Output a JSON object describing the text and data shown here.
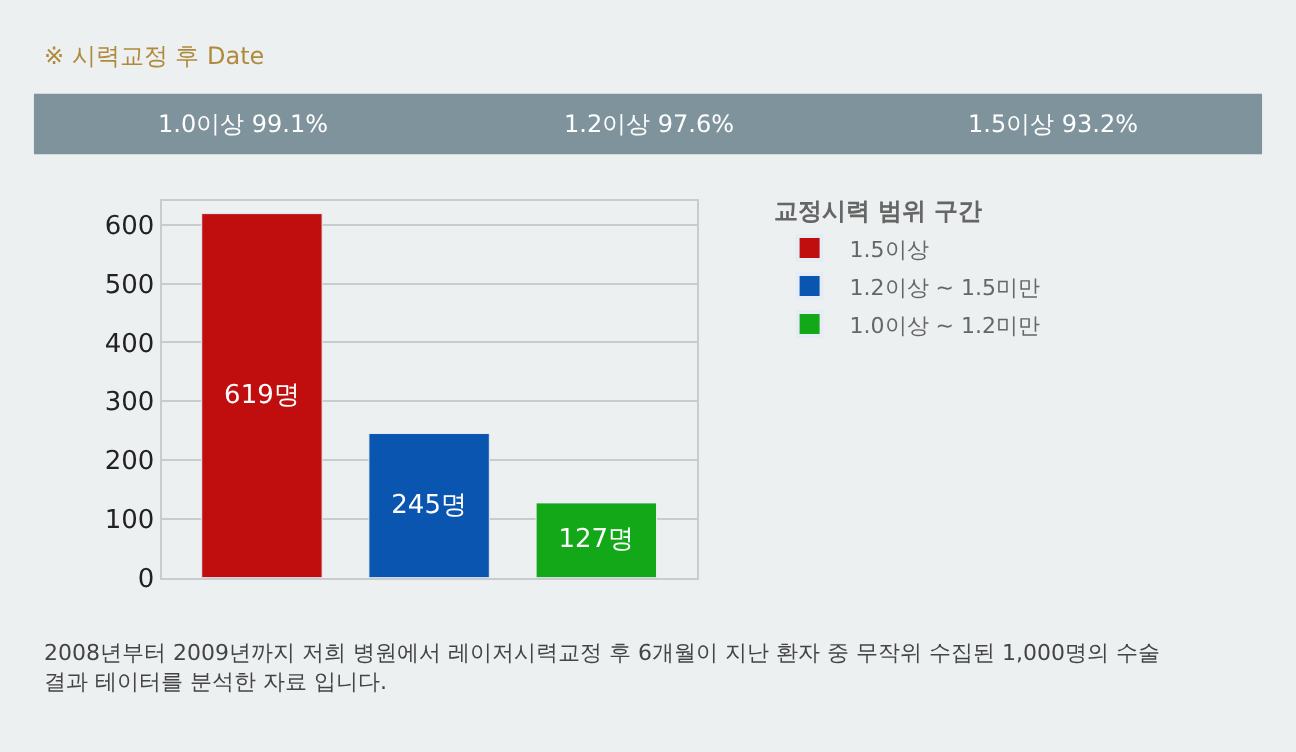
{
  "chart_data": {
    "type": "bar",
    "title": "※ 시력교정 후 Date",
    "legend_title": "교정시력 범위 구간",
    "categories": [
      null,
      null,
      null
    ],
    "series": [
      {
        "name": "1.5이상",
        "color": "#c00d0d",
        "values": [
          619,
          null,
          null
        ],
        "value_labels": [
          "619명",
          null,
          null
        ]
      },
      {
        "name": "1.2이상 ~ 1.5미만",
        "color": "#0a55b0",
        "values": [
          null,
          245,
          null
        ],
        "value_labels": [
          null,
          "245명",
          null
        ]
      },
      {
        "name": "1.0이상 ~ 1.2미만",
        "color": "#12a818",
        "values": [
          null,
          null,
          127
        ],
        "value_labels": [
          null,
          null,
          "127명"
        ]
      }
    ],
    "ylim": [
      0,
      640
    ],
    "yticks": [
      0,
      100,
      200,
      300,
      400,
      500,
      600
    ],
    "grid": "y",
    "legend": "right",
    "annotations": [
      "1.0이상 99.1%",
      "1.2이상 97.6%",
      "1.5이상 93.2%",
      "2008년부터 2009년까지 저희 병원에서 레이저시력교정 후 6개월이 지난 환자 중 무작위 수집된 1,000명의 수술 결과 테이터를 분석한 자료 입니다."
    ]
  }
}
